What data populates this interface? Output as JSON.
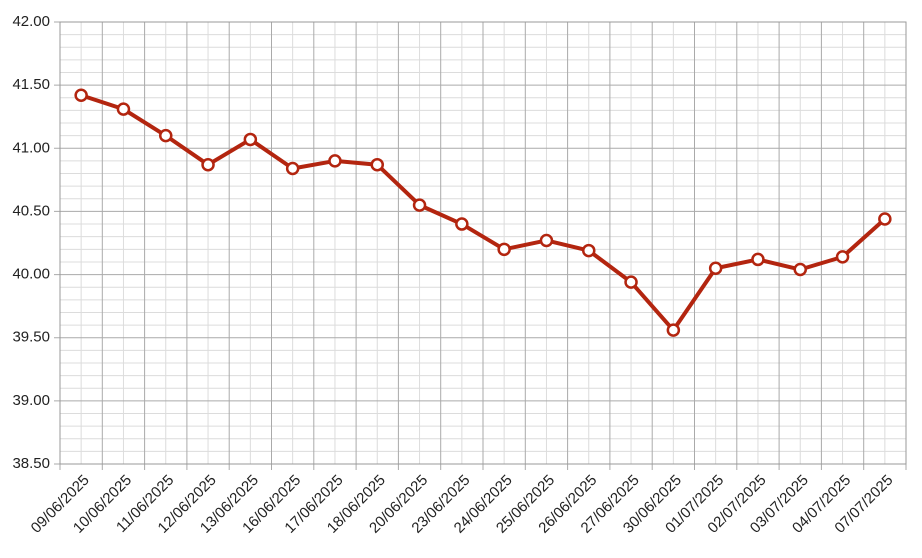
{
  "chart_data": {
    "type": "line",
    "categories": [
      "09/06/2025",
      "10/06/2025",
      "11/06/2025",
      "12/06/2025",
      "13/06/2025",
      "16/06/2025",
      "17/06/2025",
      "18/06/2025",
      "20/06/2025",
      "23/06/2025",
      "24/06/2025",
      "25/06/2025",
      "26/06/2025",
      "27/06/2025",
      "30/06/2025",
      "01/07/2025",
      "02/07/2025",
      "03/07/2025",
      "04/07/2025",
      "07/07/2025"
    ],
    "values": [
      41.42,
      41.31,
      41.1,
      40.87,
      41.07,
      40.84,
      40.9,
      40.87,
      40.55,
      40.4,
      40.2,
      40.27,
      40.19,
      39.94,
      39.56,
      40.05,
      40.12,
      40.04,
      40.14,
      40.44
    ],
    "color": "#b3250f",
    "ylim": [
      38.5,
      42.0
    ],
    "yticks": [
      {
        "value": 38.5,
        "label": "38.50"
      },
      {
        "value": 39.0,
        "label": "39.00"
      },
      {
        "value": 39.5,
        "label": "39.50"
      },
      {
        "value": 40.0,
        "label": "40.00"
      },
      {
        "value": 40.5,
        "label": "40.50"
      },
      {
        "value": 41.0,
        "label": "41.00"
      },
      {
        "value": 41.5,
        "label": "41.50"
      },
      {
        "value": 42.0,
        "label": "42.00"
      }
    ],
    "grid": true
  }
}
